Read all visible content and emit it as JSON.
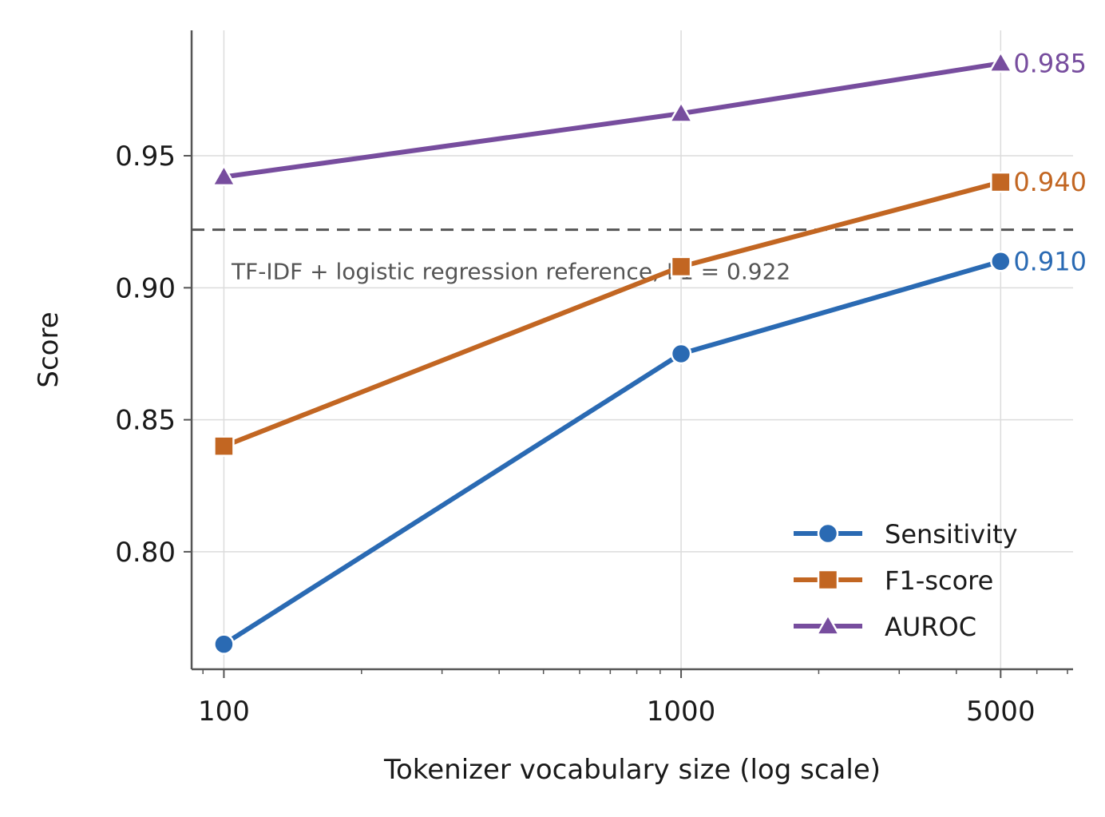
{
  "chart_data": {
    "type": "line",
    "xlabel": "Tokenizer vocabulary size (log scale)",
    "ylabel": "Score",
    "x_scale": "log",
    "xlim": [
      85,
      7200
    ],
    "ylim": [
      0.7555,
      0.9975
    ],
    "x_ticks": [
      100,
      1000,
      5000
    ],
    "x_tick_labels": [
      "100",
      "1000",
      "5000"
    ],
    "y_ticks": [
      0.8,
      0.85,
      0.9,
      0.95
    ],
    "y_tick_labels": [
      "0.80",
      "0.85",
      "0.90",
      "0.95"
    ],
    "grid": true,
    "legend_position": "lower-right",
    "x": [
      100,
      1000,
      5000
    ],
    "series": [
      {
        "name": "Sensitivity",
        "values": [
          0.765,
          0.875,
          0.91
        ],
        "color": "#2a6ab3",
        "marker": "circle",
        "end_label": "0.910"
      },
      {
        "name": "F1-score",
        "values": [
          0.84,
          0.908,
          0.94
        ],
        "color": "#c26622",
        "marker": "square",
        "end_label": "0.940"
      },
      {
        "name": "AUROC",
        "values": [
          0.942,
          0.966,
          0.985
        ],
        "color": "#774d9e",
        "marker": "triangle",
        "end_label": "0.985"
      }
    ],
    "reference_line": {
      "value": 0.922,
      "label": "TF-IDF + logistic regression reference, F1 = 0.922",
      "color": "#555555"
    }
  }
}
